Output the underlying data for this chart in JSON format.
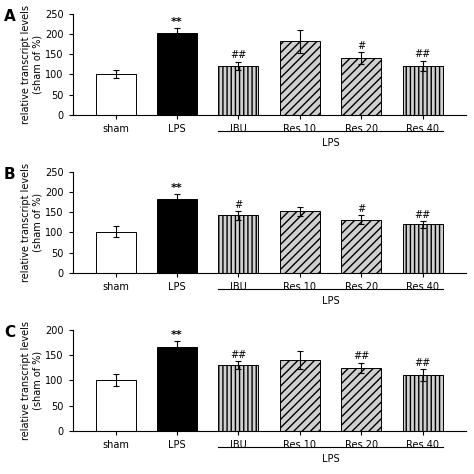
{
  "panels": [
    {
      "label": "A",
      "ylim": [
        0,
        250
      ],
      "yticks": [
        0,
        50,
        100,
        150,
        200,
        250
      ],
      "values": [
        102,
        203,
        122,
        182,
        140,
        121
      ],
      "errors": [
        10,
        12,
        10,
        28,
        15,
        13
      ],
      "sig_lps": "**",
      "sig_treatment": [
        "##",
        "",
        "#",
        "##"
      ],
      "bar_styles": [
        {
          "facecolor": "white",
          "hatch": "",
          "edgecolor": "black"
        },
        {
          "facecolor": "black",
          "hatch": "",
          "edgecolor": "black"
        },
        {
          "facecolor": "#d0d0d0",
          "hatch": "||||",
          "edgecolor": "black"
        },
        {
          "facecolor": "#d0d0d0",
          "hatch": "////",
          "edgecolor": "black"
        },
        {
          "facecolor": "#d0d0d0",
          "hatch": "////",
          "edgecolor": "black"
        },
        {
          "facecolor": "#d0d0d0",
          "hatch": "||||",
          "edgecolor": "black"
        }
      ]
    },
    {
      "label": "B",
      "ylim": [
        0,
        250
      ],
      "yticks": [
        0,
        50,
        100,
        150,
        200,
        250
      ],
      "values": [
        102,
        182,
        142,
        152,
        132,
        120
      ],
      "errors": [
        13,
        12,
        10,
        12,
        10,
        8
      ],
      "sig_lps": "**",
      "sig_treatment": [
        "#",
        "",
        "#",
        "##"
      ],
      "bar_styles": [
        {
          "facecolor": "white",
          "hatch": "",
          "edgecolor": "black"
        },
        {
          "facecolor": "black",
          "hatch": "",
          "edgecolor": "black"
        },
        {
          "facecolor": "#d0d0d0",
          "hatch": "||||",
          "edgecolor": "black"
        },
        {
          "facecolor": "#d0d0d0",
          "hatch": "////",
          "edgecolor": "black"
        },
        {
          "facecolor": "#d0d0d0",
          "hatch": "////",
          "edgecolor": "black"
        },
        {
          "facecolor": "#d0d0d0",
          "hatch": "||||",
          "edgecolor": "black"
        }
      ]
    },
    {
      "label": "C",
      "ylim": [
        0,
        200
      ],
      "yticks": [
        0,
        50,
        100,
        150,
        200
      ],
      "values": [
        101,
        165,
        130,
        140,
        125,
        110
      ],
      "errors": [
        12,
        12,
        8,
        18,
        10,
        12
      ],
      "sig_lps": "**",
      "sig_treatment": [
        "##",
        "",
        "##",
        "##"
      ],
      "bar_styles": [
        {
          "facecolor": "white",
          "hatch": "",
          "edgecolor": "black"
        },
        {
          "facecolor": "black",
          "hatch": "",
          "edgecolor": "black"
        },
        {
          "facecolor": "#d0d0d0",
          "hatch": "||||",
          "edgecolor": "black"
        },
        {
          "facecolor": "#d0d0d0",
          "hatch": "////",
          "edgecolor": "black"
        },
        {
          "facecolor": "#d0d0d0",
          "hatch": "////",
          "edgecolor": "black"
        },
        {
          "facecolor": "#d0d0d0",
          "hatch": "||||",
          "edgecolor": "black"
        }
      ]
    }
  ],
  "categories": [
    "sham",
    "LPS",
    "IBU",
    "Res 10",
    "Res 20",
    "Res 40"
  ],
  "xlabel_group": "LPS",
  "ylabel": "relative transcript levels\n(sham of %)",
  "background_color": "white",
  "bar_width": 0.65,
  "fontsize": 7,
  "sig_fontsize": 8
}
